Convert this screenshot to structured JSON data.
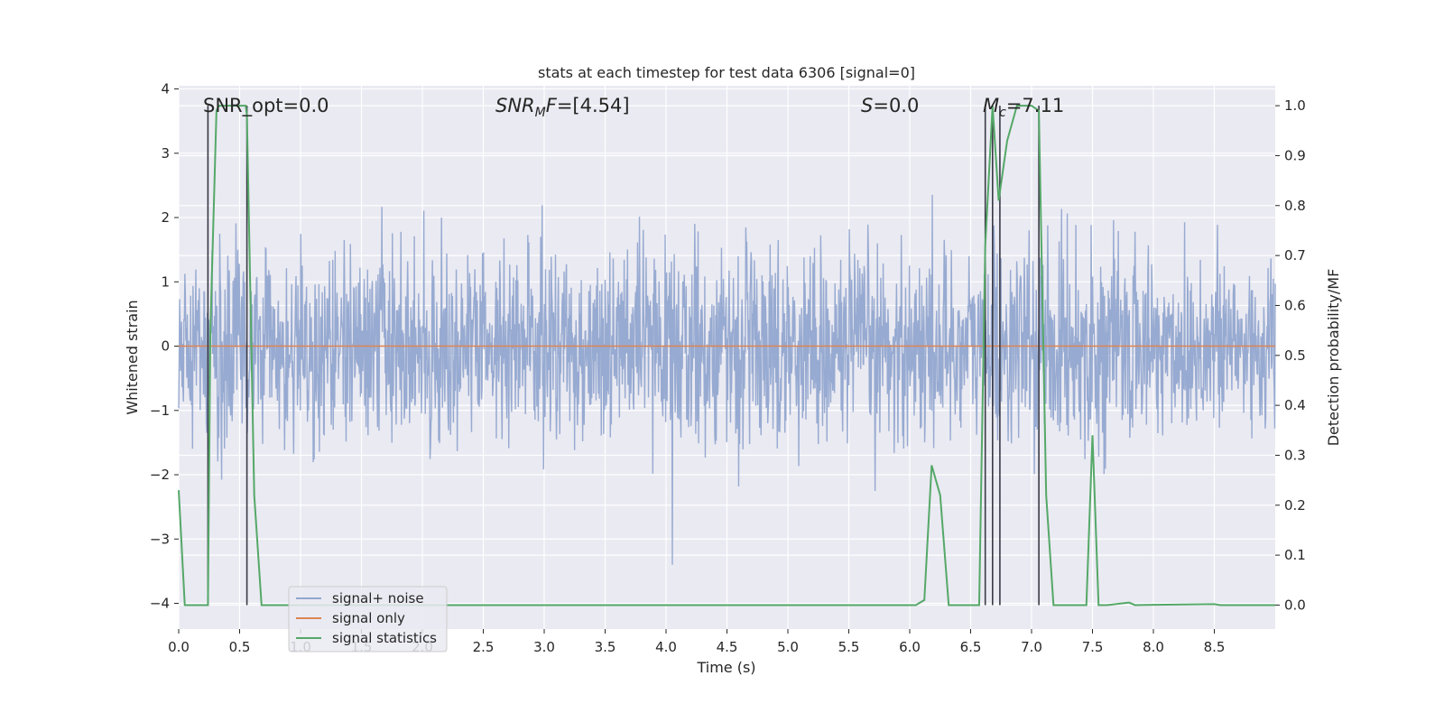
{
  "chart_data": {
    "type": "line",
    "title": "stats at each timestep for test data 6306 [signal=0]",
    "xlabel": "Time (s)",
    "ylabel": "Whitened strain",
    "y2label": "Detection probability/MF",
    "xlim": [
      0.0,
      9.0
    ],
    "ylim": [
      -4.4,
      4.05
    ],
    "y2lim": [
      -0.048,
      1.04
    ],
    "xticks": [
      "0.0",
      "0.5",
      "1.0",
      "1.5",
      "2.0",
      "2.5",
      "3.0",
      "3.5",
      "4.0",
      "4.5",
      "5.0",
      "5.5",
      "6.0",
      "6.5",
      "7.0",
      "7.5",
      "8.0",
      "8.5"
    ],
    "yticks": [
      "4",
      "3",
      "2",
      "1",
      "0",
      "−1",
      "−2",
      "−3",
      "−4"
    ],
    "y2ticks": [
      "1.0",
      "0.9",
      "0.8",
      "0.7",
      "0.6",
      "0.5",
      "0.4",
      "0.3",
      "0.2",
      "0.1",
      "0.0"
    ],
    "grid": true,
    "legend_position": "lower-left",
    "annotations": [
      {
        "text": "SNR_opt=0.0",
        "x": 0.2
      },
      {
        "text": "SNR_MF=[4.54]",
        "x": 2.6
      },
      {
        "text": "S=0.0",
        "x": 5.6
      },
      {
        "text": "M_c=7.11",
        "x": 6.6
      }
    ],
    "series": [
      {
        "name": "signal+ noise",
        "color": "#92a6cf",
        "axis": "left",
        "noise": {
          "sigma": 0.75,
          "samples": 2300
        }
      },
      {
        "name": "signal only",
        "color": "#dd8452",
        "axis": "left",
        "x": [
          0.0,
          9.0
        ],
        "y": [
          0.0,
          0.0
        ]
      },
      {
        "name": "signal statistics",
        "color": "#55a868",
        "axis": "right",
        "x": [
          0.0,
          0.05,
          0.24,
          0.26,
          0.31,
          0.33,
          0.55,
          0.56,
          0.62,
          0.68,
          0.75,
          6.05,
          6.12,
          6.18,
          6.25,
          6.32,
          6.57,
          6.62,
          6.68,
          6.73,
          6.8,
          6.88,
          7.0,
          7.06,
          7.12,
          7.18,
          7.25,
          7.45,
          7.5,
          7.55,
          7.62,
          7.8,
          7.85,
          8.5,
          8.55,
          9.0
        ],
        "y": [
          0.23,
          0.0,
          0.0,
          0.55,
          0.99,
          1.0,
          1.0,
          0.98,
          0.22,
          0.0,
          0.0,
          0.0,
          0.01,
          0.28,
          0.22,
          0.0,
          0.0,
          0.72,
          1.0,
          0.81,
          0.93,
          1.0,
          1.0,
          0.99,
          0.22,
          0.0,
          0.0,
          0.0,
          0.34,
          0.0,
          0.0,
          0.005,
          0.0,
          0.002,
          0.0,
          0.0
        ]
      }
    ],
    "vlines": [
      0.24,
      0.56,
      6.62,
      6.68,
      6.74,
      7.06
    ]
  }
}
